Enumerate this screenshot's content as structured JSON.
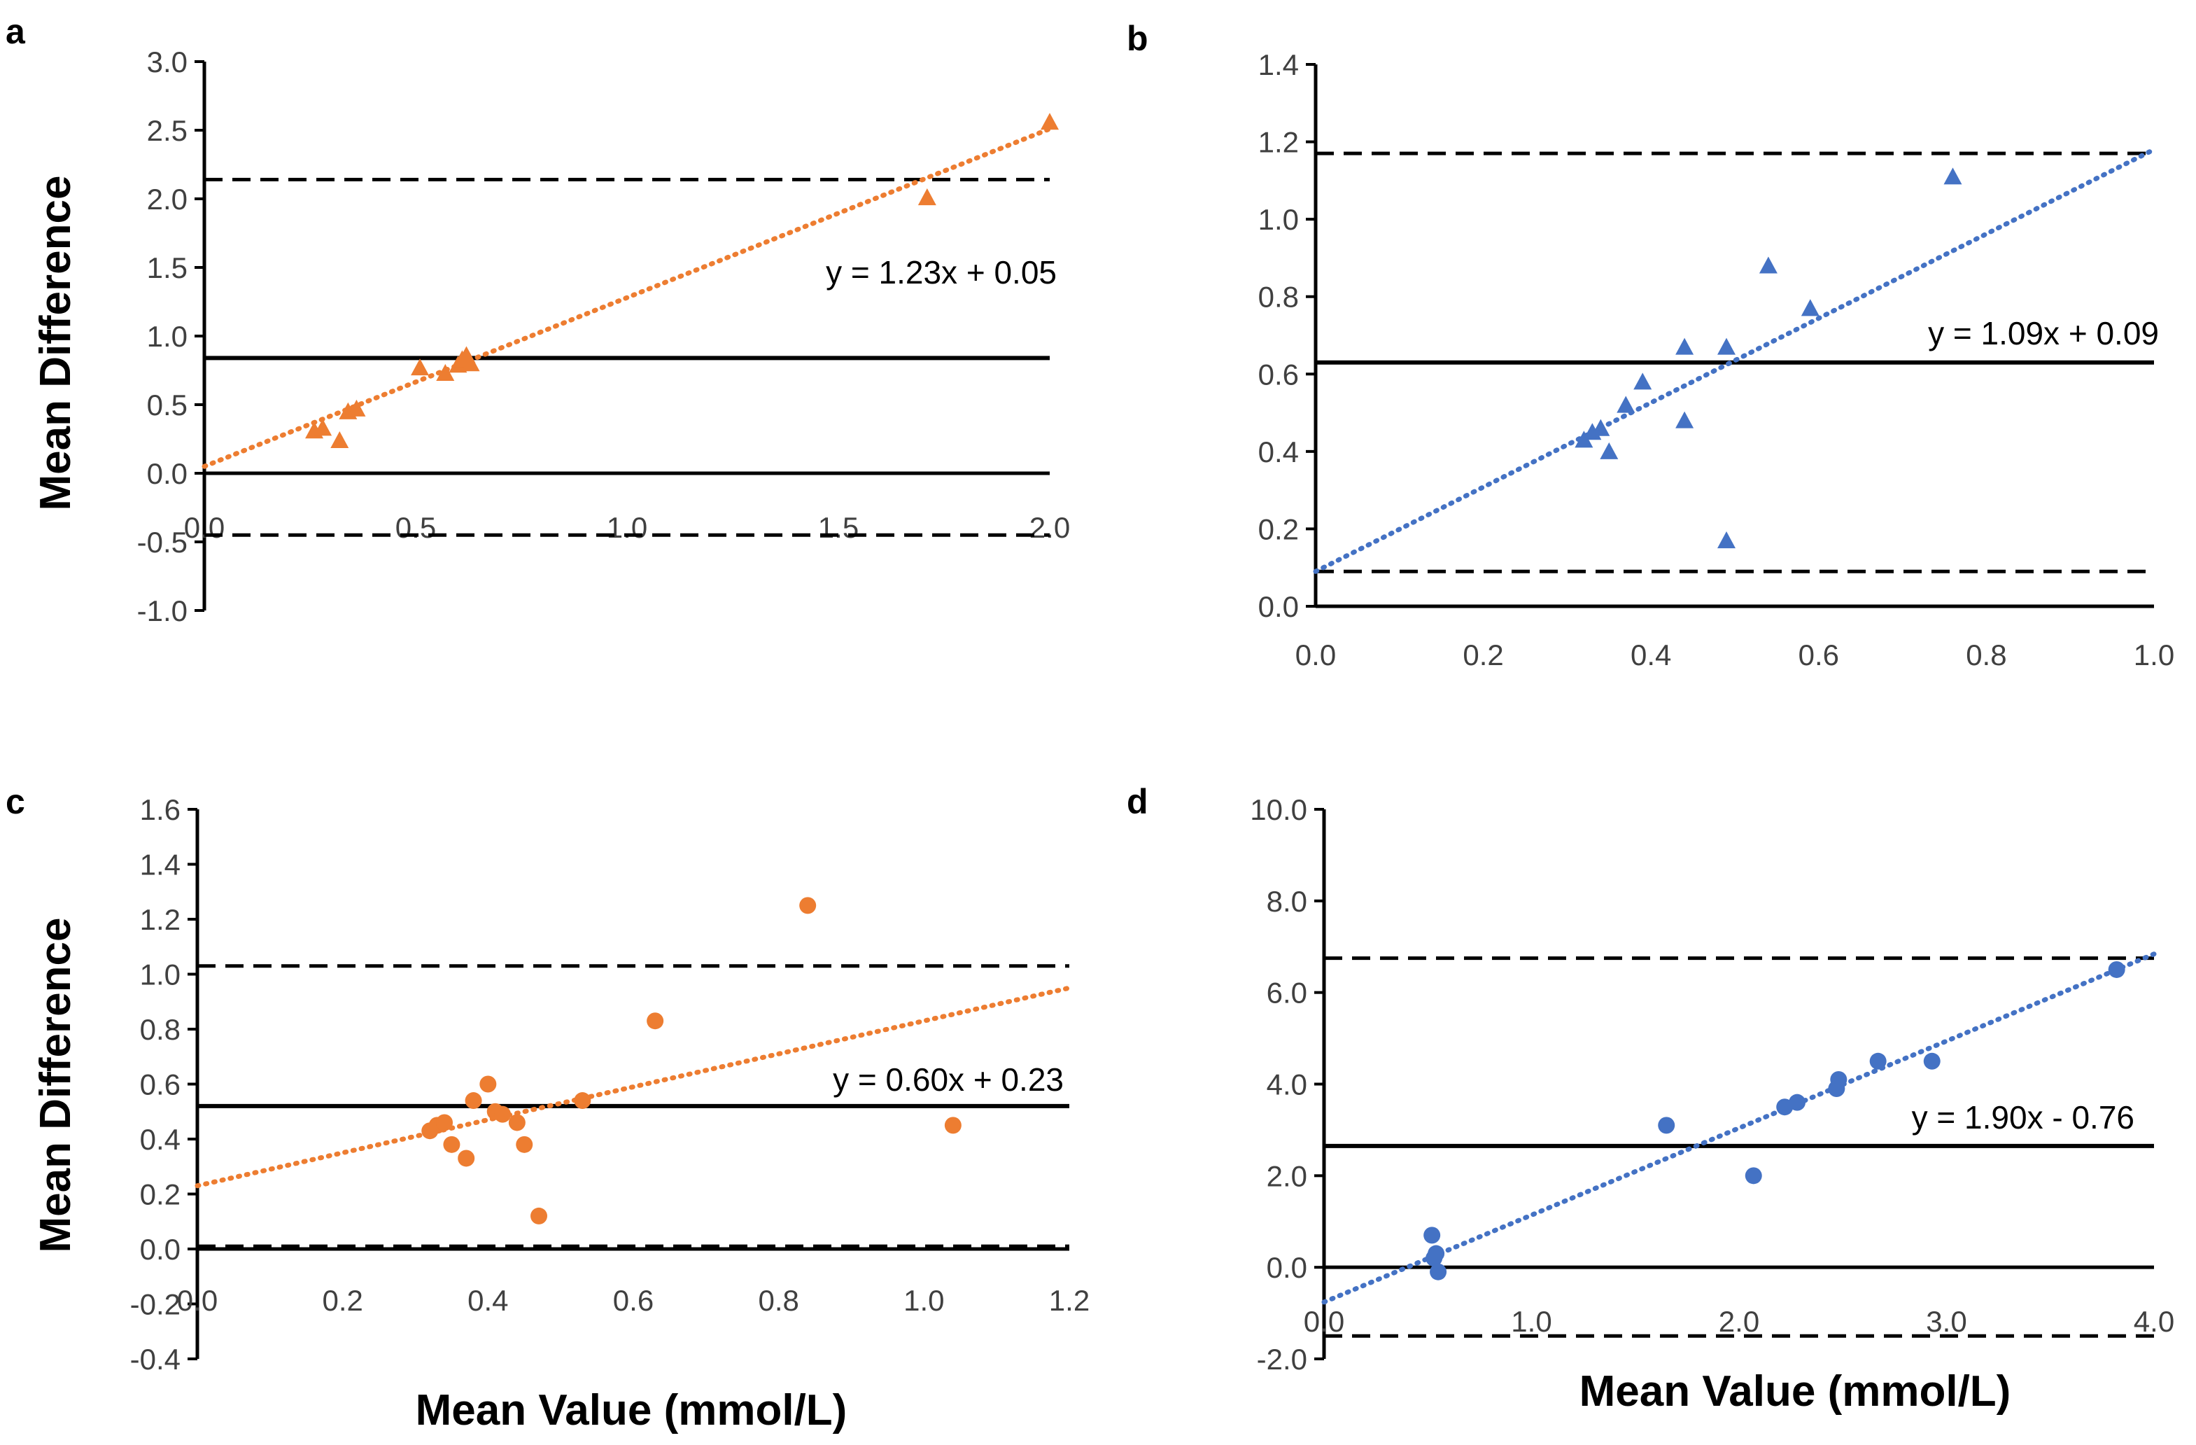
{
  "chart_data": [
    {
      "panel": "a",
      "type": "scatter",
      "marker": "triangle",
      "color": "#ED7D31",
      "xlim": [
        0.0,
        2.0
      ],
      "ylim": [
        -1.0,
        3.0
      ],
      "xticks": [
        "0.0",
        "0.5",
        "1.0",
        "1.5",
        "2.0"
      ],
      "yticks": [
        "-1.0",
        "-0.5",
        "0.0",
        "0.5",
        "1.0",
        "1.5",
        "2.0",
        "2.5",
        "3.0"
      ],
      "xticks_values": [
        0.0,
        0.5,
        1.0,
        1.5,
        2.0
      ],
      "yticks_values": [
        -1.0,
        -0.5,
        0.0,
        0.5,
        1.0,
        1.5,
        2.0,
        2.5,
        3.0
      ],
      "ylabel": "Mean Difference",
      "xlabel": "",
      "x": [
        0.26,
        0.28,
        0.32,
        0.34,
        0.36,
        0.51,
        0.57,
        0.6,
        0.61,
        0.62,
        0.63,
        1.71,
        2.0
      ],
      "y": [
        0.31,
        0.33,
        0.24,
        0.45,
        0.47,
        0.77,
        0.73,
        0.79,
        0.83,
        0.86,
        0.8,
        2.01,
        2.56
      ],
      "mean_line": 0.84,
      "loa_upper": 2.14,
      "loa_lower": -0.45,
      "zero_line": 0.0,
      "trendline": {
        "slope": 1.23,
        "intercept": 0.05
      },
      "equation": "y = 1.23x + 0.05"
    },
    {
      "panel": "b",
      "type": "scatter",
      "marker": "triangle",
      "color": "#4472C4",
      "xlim": [
        0.0,
        1.0
      ],
      "ylim": [
        0.0,
        1.4
      ],
      "xticks": [
        "0.0",
        "0.2",
        "0.4",
        "0.6",
        "0.8",
        "1.0"
      ],
      "yticks": [
        "0.0",
        "0.2",
        "0.4",
        "0.6",
        "0.8",
        "1.0",
        "1.2",
        "1.4"
      ],
      "xticks_values": [
        0.0,
        0.2,
        0.4,
        0.6,
        0.8,
        1.0
      ],
      "yticks_values": [
        0.0,
        0.2,
        0.4,
        0.6,
        0.8,
        1.0,
        1.2,
        1.4
      ],
      "ylabel": "",
      "xlabel": "",
      "x": [
        0.32,
        0.33,
        0.34,
        0.35,
        0.37,
        0.39,
        0.44,
        0.44,
        0.49,
        0.49,
        0.54,
        0.59,
        0.76
      ],
      "y": [
        0.43,
        0.45,
        0.46,
        0.4,
        0.52,
        0.58,
        0.67,
        0.48,
        0.67,
        0.17,
        0.88,
        0.77,
        1.11
      ],
      "mean_line": 0.63,
      "loa_upper": 1.17,
      "loa_lower": 0.09,
      "zero_line": 0.0,
      "trendline": {
        "slope": 1.09,
        "intercept": 0.09
      },
      "equation": "y = 1.09x + 0.09"
    },
    {
      "panel": "c",
      "type": "scatter",
      "marker": "circle",
      "color": "#ED7D31",
      "xlim": [
        0.0,
        1.2
      ],
      "ylim": [
        -0.4,
        1.6
      ],
      "xticks": [
        "0.0",
        "0.2",
        "0.4",
        "0.6",
        "0.8",
        "1.0",
        "1.2"
      ],
      "yticks": [
        "-0.4",
        "-0.2",
        "0.0",
        "0.2",
        "0.4",
        "0.6",
        "0.8",
        "1.0",
        "1.2",
        "1.4",
        "1.6"
      ],
      "xticks_values": [
        0.0,
        0.2,
        0.4,
        0.6,
        0.8,
        1.0,
        1.2
      ],
      "yticks_values": [
        -0.4,
        -0.2,
        0.0,
        0.2,
        0.4,
        0.6,
        0.8,
        1.0,
        1.2,
        1.4,
        1.6
      ],
      "ylabel": "Mean Difference",
      "xlabel": "Mean Value (mmol/L)",
      "x": [
        0.32,
        0.33,
        0.34,
        0.35,
        0.37,
        0.38,
        0.4,
        0.41,
        0.42,
        0.44,
        0.45,
        0.47,
        0.53,
        0.63,
        0.84,
        1.04
      ],
      "y": [
        0.43,
        0.45,
        0.46,
        0.38,
        0.33,
        0.54,
        0.6,
        0.5,
        0.49,
        0.46,
        0.38,
        0.12,
        0.54,
        0.83,
        1.25,
        0.45
      ],
      "mean_line": 0.52,
      "loa_upper": 1.03,
      "loa_lower": 0.01,
      "zero_line": 0.0,
      "trendline": {
        "slope": 0.6,
        "intercept": 0.23
      },
      "equation": "y = 0.60x + 0.23"
    },
    {
      "panel": "d",
      "type": "scatter",
      "marker": "circle",
      "color": "#4472C4",
      "xlim": [
        0.0,
        4.0
      ],
      "ylim": [
        -2.0,
        10.0
      ],
      "xticks": [
        "0.0",
        "1.0",
        "2.0",
        "3.0",
        "4.0"
      ],
      "yticks": [
        "-2.0",
        "0.0",
        "2.0",
        "4.0",
        "6.0",
        "8.0",
        "10.0"
      ],
      "xticks_values": [
        0.0,
        1.0,
        2.0,
        3.0,
        4.0
      ],
      "yticks_values": [
        -2.0,
        0.0,
        2.0,
        4.0,
        6.0,
        8.0,
        10.0
      ],
      "ylabel": "",
      "xlabel": "Mean Value (mmol/L)",
      "x": [
        0.52,
        0.53,
        0.54,
        0.55,
        1.65,
        2.07,
        2.22,
        2.28,
        2.47,
        2.48,
        2.67,
        2.93,
        3.82
      ],
      "y": [
        0.7,
        0.2,
        0.3,
        -0.1,
        3.1,
        2.0,
        3.5,
        3.6,
        3.9,
        4.1,
        4.5,
        4.5,
        6.5
      ],
      "mean_line": 2.65,
      "loa_upper": 6.75,
      "loa_lower": -1.5,
      "zero_line": 0.0,
      "trendline": {
        "slope": 1.9,
        "intercept": -0.76
      },
      "equation": "y = 1.90x - 0.76"
    }
  ]
}
